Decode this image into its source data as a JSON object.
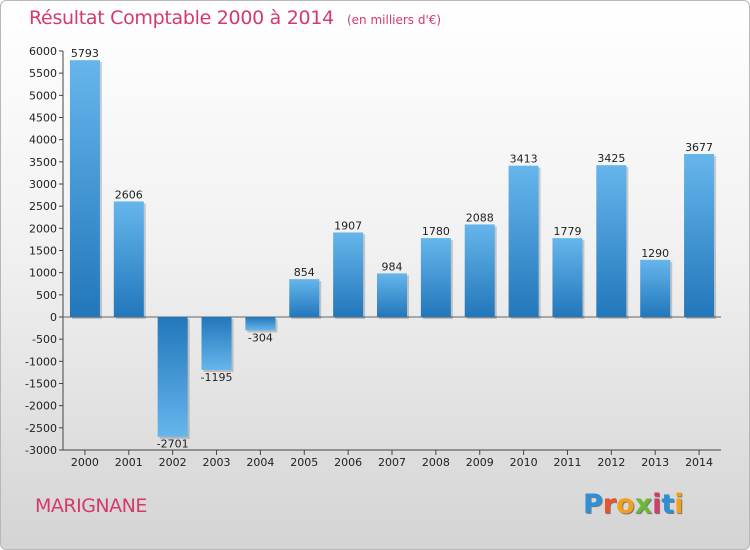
{
  "header": {
    "title": "Résultat Comptable 2000 à 2014",
    "unit": "(en milliers d'€)"
  },
  "footer": {
    "city": "MARIGNANE",
    "logo_text": "Proxiti"
  },
  "colors": {
    "title": "#d43a6a",
    "bar_light": "#63b3ea",
    "bar_dark": "#2277bb",
    "logo": [
      "#2f8fd8",
      "#e8552b",
      "#f2a01c",
      "#6cb83a",
      "#d43a6a",
      "#2f8fd8",
      "#f2a01c"
    ]
  },
  "chart_data": {
    "type": "bar",
    "categories": [
      "2000",
      "2001",
      "2002",
      "2003",
      "2004",
      "2005",
      "2006",
      "2007",
      "2008",
      "2009",
      "2010",
      "2011",
      "2012",
      "2013",
      "2014"
    ],
    "values": [
      5793,
      2606,
      -2701,
      -1195,
      -304,
      854,
      1907,
      984,
      1780,
      2088,
      3413,
      1779,
      3425,
      1290,
      3677
    ],
    "ylim": [
      -3000,
      6000
    ],
    "yticks": [
      -3000,
      -2500,
      -2000,
      -1500,
      -1000,
      -500,
      0,
      500,
      1000,
      1500,
      2000,
      2500,
      3000,
      3500,
      4000,
      4500,
      5000,
      5500,
      6000
    ],
    "grid": false,
    "data_labels": true
  }
}
